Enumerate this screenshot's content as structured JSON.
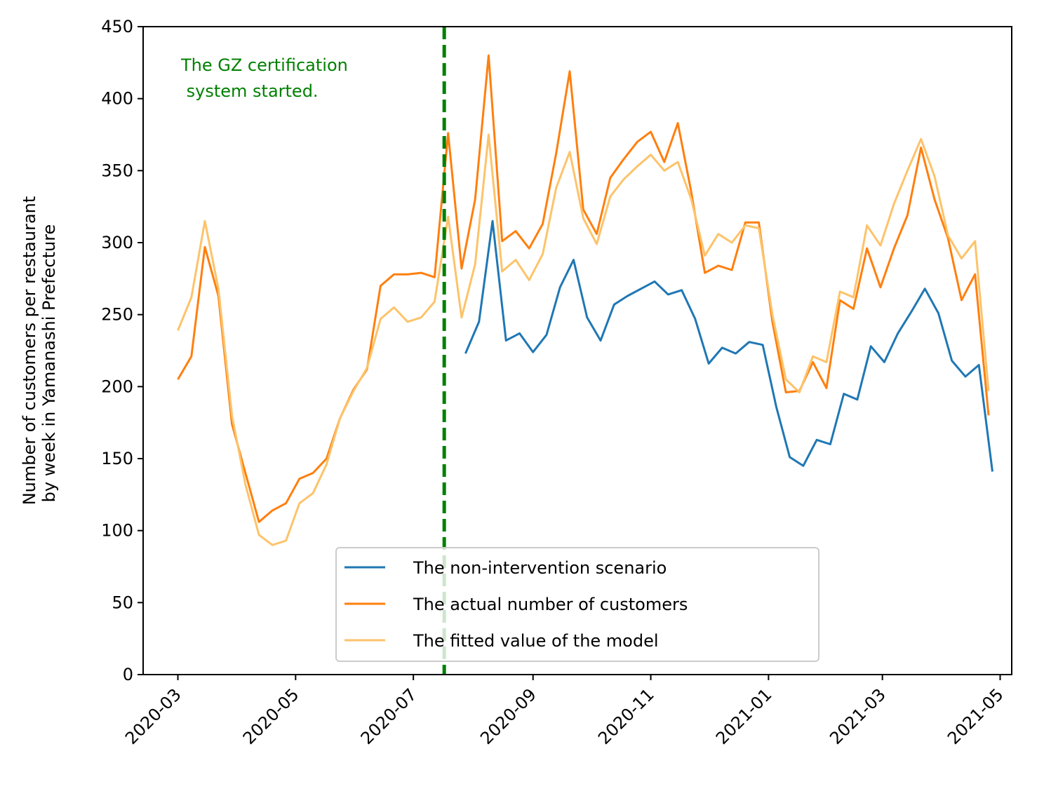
{
  "chart_data": {
    "type": "line",
    "title": "",
    "xlabel": "",
    "ylabel_lines": [
      "Number of customers per restaurant",
      "by week in Yamanashi Prefecture"
    ],
    "xlim": [
      "2020-02-12",
      "2021-05-07"
    ],
    "ylim": [
      0,
      450
    ],
    "yticks": [
      0,
      50,
      100,
      150,
      200,
      250,
      300,
      350,
      400,
      450
    ],
    "xticks": [
      {
        "date": "2020-03-01",
        "label": "2020-03"
      },
      {
        "date": "2020-05-01",
        "label": "2020-05"
      },
      {
        "date": "2020-07-01",
        "label": "2020-07"
      },
      {
        "date": "2020-09-01",
        "label": "2020-09"
      },
      {
        "date": "2020-11-01",
        "label": "2020-11"
      },
      {
        "date": "2021-01-01",
        "label": "2021-01"
      },
      {
        "date": "2021-03-01",
        "label": "2021-03"
      },
      {
        "date": "2021-05-01",
        "label": "2021-05"
      }
    ],
    "grid": false,
    "legend_position": "bottom-center",
    "intervention": {
      "date": "2020-07-17",
      "color": "#008000",
      "label_lines": [
        "The GZ certification",
        " system started."
      ]
    },
    "series": [
      {
        "name": "The non-intervention scenario",
        "color": "#1f77b4",
        "x": [
          "2020-07-28",
          "2020-08-04",
          "2020-08-11",
          "2020-08-18",
          "2020-08-25",
          "2020-09-01",
          "2020-09-08",
          "2020-09-15",
          "2020-09-22",
          "2020-09-29",
          "2020-10-06",
          "2020-10-13",
          "2020-10-20",
          "2020-10-27",
          "2020-11-03",
          "2020-11-10",
          "2020-11-17",
          "2020-11-24",
          "2020-12-01",
          "2020-12-08",
          "2020-12-15",
          "2020-12-22",
          "2020-12-29",
          "2021-01-05",
          "2021-01-12",
          "2021-01-19",
          "2021-01-26",
          "2021-02-02",
          "2021-02-09",
          "2021-02-16",
          "2021-02-23",
          "2021-03-02",
          "2021-03-09",
          "2021-03-16",
          "2021-03-23",
          "2021-03-30",
          "2021-04-06",
          "2021-04-13",
          "2021-04-20",
          "2021-04-27"
        ],
        "values": [
          223,
          245,
          315,
          232,
          237,
          224,
          236,
          269,
          288,
          248,
          232,
          257,
          263,
          268,
          273,
          264,
          267,
          247,
          216,
          227,
          223,
          231,
          229,
          186,
          151,
          145,
          163,
          160,
          195,
          191,
          228,
          217,
          237,
          252,
          268,
          251,
          218,
          207,
          215,
          141
        ]
      },
      {
        "name": "The actual number of customers",
        "color": "#ff7f0e",
        "x": [
          "2020-03-01",
          "2020-03-08",
          "2020-03-15",
          "2020-03-22",
          "2020-03-29",
          "2020-04-05",
          "2020-04-12",
          "2020-04-19",
          "2020-04-26",
          "2020-05-03",
          "2020-05-10",
          "2020-05-17",
          "2020-05-24",
          "2020-05-31",
          "2020-06-07",
          "2020-06-14",
          "2020-06-21",
          "2020-06-28",
          "2020-07-05",
          "2020-07-12",
          "2020-07-19",
          "2020-07-26",
          "2020-08-02",
          "2020-08-09",
          "2020-08-16",
          "2020-08-23",
          "2020-08-30",
          "2020-09-06",
          "2020-09-13",
          "2020-09-20",
          "2020-09-27",
          "2020-10-04",
          "2020-10-11",
          "2020-10-18",
          "2020-10-25",
          "2020-11-01",
          "2020-11-08",
          "2020-11-15",
          "2020-11-22",
          "2020-11-29",
          "2020-12-06",
          "2020-12-13",
          "2020-12-20",
          "2020-12-27",
          "2021-01-03",
          "2021-01-10",
          "2021-01-17",
          "2021-01-24",
          "2021-01-31",
          "2021-02-07",
          "2021-02-14",
          "2021-02-21",
          "2021-02-28",
          "2021-03-07",
          "2021-03-14",
          "2021-03-21",
          "2021-03-28",
          "2021-04-04",
          "2021-04-11",
          "2021-04-18",
          "2021-04-25"
        ],
        "values": [
          205,
          221,
          297,
          263,
          174,
          140,
          106,
          114,
          119,
          136,
          140,
          150,
          178,
          198,
          212,
          270,
          278,
          278,
          279,
          276,
          376,
          282,
          330,
          430,
          301,
          308,
          296,
          313,
          362,
          419,
          323,
          306,
          345,
          358,
          370,
          377,
          356,
          383,
          335,
          279,
          284,
          281,
          314,
          314,
          245,
          196,
          197,
          217,
          199,
          260,
          254,
          296,
          269,
          296,
          319,
          366,
          330,
          303,
          260,
          278,
          180
        ]
      },
      {
        "name": "The fitted value of the model",
        "color": "#fdc36a",
        "x": [
          "2020-03-01",
          "2020-03-08",
          "2020-03-15",
          "2020-03-22",
          "2020-03-29",
          "2020-04-05",
          "2020-04-12",
          "2020-04-19",
          "2020-04-26",
          "2020-05-03",
          "2020-05-10",
          "2020-05-17",
          "2020-05-24",
          "2020-05-31",
          "2020-06-07",
          "2020-06-14",
          "2020-06-21",
          "2020-06-28",
          "2020-07-05",
          "2020-07-12",
          "2020-07-19",
          "2020-07-26",
          "2020-08-02",
          "2020-08-09",
          "2020-08-16",
          "2020-08-23",
          "2020-08-30",
          "2020-09-06",
          "2020-09-13",
          "2020-09-20",
          "2020-09-27",
          "2020-10-04",
          "2020-10-11",
          "2020-10-18",
          "2020-10-25",
          "2020-11-01",
          "2020-11-08",
          "2020-11-15",
          "2020-11-22",
          "2020-11-29",
          "2020-12-06",
          "2020-12-13",
          "2020-12-20",
          "2020-12-27",
          "2021-01-03",
          "2021-01-10",
          "2021-01-17",
          "2021-01-24",
          "2021-01-31",
          "2021-02-07",
          "2021-02-14",
          "2021-02-21",
          "2021-02-28",
          "2021-03-07",
          "2021-03-14",
          "2021-03-21",
          "2021-03-28",
          "2021-04-04",
          "2021-04-11",
          "2021-04-18",
          "2021-04-25"
        ],
        "values": [
          239,
          262,
          315,
          268,
          180,
          132,
          97,
          90,
          93,
          119,
          126,
          146,
          178,
          197,
          213,
          247,
          255,
          245,
          248,
          259,
          318,
          248,
          285,
          375,
          280,
          288,
          274,
          292,
          338,
          363,
          317,
          299,
          332,
          344,
          353,
          361,
          350,
          356,
          330,
          291,
          306,
          300,
          312,
          310,
          250,
          205,
          196,
          221,
          217,
          266,
          262,
          312,
          298,
          327,
          350,
          372,
          346,
          305,
          289,
          301,
          197
        ]
      }
    ]
  }
}
